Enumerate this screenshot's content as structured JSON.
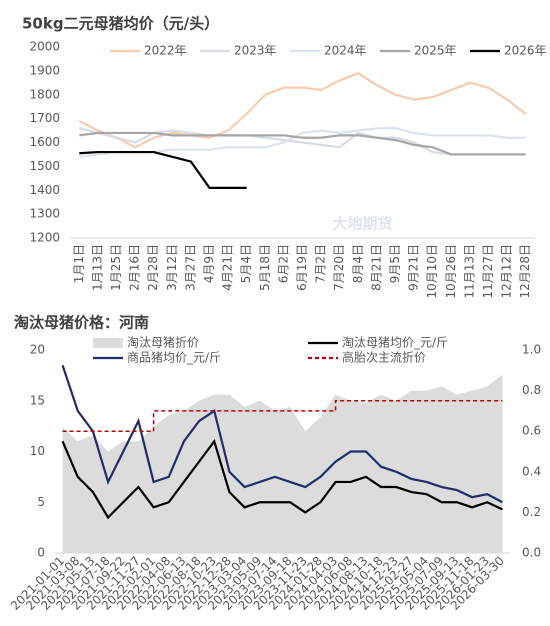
{
  "chart_data": [
    {
      "type": "line",
      "title": "50kg二元母猪均价（元/头）",
      "watermark": "大地期货",
      "categories": [
        "1月1日",
        "1月13日",
        "1月25日",
        "2月16日",
        "2月28日",
        "3月12日",
        "3月27日",
        "4月9日",
        "4月21日",
        "5月4日",
        "5月18日",
        "6月2日",
        "6月19日",
        "7月2日",
        "7月20日",
        "8月4日",
        "8月21日",
        "9月5日",
        "9月21日",
        "10月10日",
        "10月26日",
        "11月13日",
        "11月27日",
        "12月12日",
        "12月28日"
      ],
      "ylim": [
        1200,
        2000
      ],
      "yticks": [
        1200,
        1300,
        1400,
        1500,
        1600,
        1700,
        1800,
        1900,
        2000
      ],
      "grid": false,
      "series": [
        {
          "name": "2022年",
          "color": "#f8cbad",
          "values": [
            1690,
            1650,
            1620,
            1580,
            1620,
            1640,
            1630,
            1620,
            1650,
            1720,
            1800,
            1830,
            1830,
            1820,
            1860,
            1890,
            1840,
            1800,
            1780,
            1790,
            1820,
            1850,
            1830,
            1780,
            1720
          ]
        },
        {
          "name": "2023年",
          "color": "#d6dce5",
          "values": [
            1660,
            1640,
            1620,
            1600,
            1640,
            1650,
            1640,
            1630,
            1630,
            1630,
            1620,
            1610,
            1600,
            1590,
            1580,
            1640,
            1620,
            1620,
            1600,
            1560,
            1550,
            1550,
            1550,
            1550,
            1550
          ]
        },
        {
          "name": "2024年",
          "color": "#dae3f3",
          "values": [
            1540,
            1550,
            1560,
            1560,
            1560,
            1570,
            1570,
            1570,
            1580,
            1580,
            1580,
            1600,
            1640,
            1650,
            1640,
            1650,
            1660,
            1660,
            1640,
            1630,
            1630,
            1630,
            1630,
            1620,
            1620
          ]
        },
        {
          "name": "2025年",
          "color": "#a6a6a6",
          "values": [
            1630,
            1640,
            1640,
            1640,
            1640,
            1630,
            1630,
            1630,
            1630,
            1630,
            1630,
            1630,
            1620,
            1620,
            1630,
            1630,
            1620,
            1610,
            1590,
            1580,
            1550,
            1550,
            1550,
            1550,
            1550
          ]
        },
        {
          "name": "2026年",
          "color": "#000000",
          "values": [
            1555,
            1560,
            1560,
            1560,
            1560,
            1540,
            1520,
            1410,
            1410,
            1410,
            null,
            null,
            null,
            null,
            null,
            null,
            null,
            null,
            null,
            null,
            null,
            null,
            null,
            null,
            null
          ]
        }
      ]
    },
    {
      "type": "line",
      "title": "淘汰母猪价格：河南",
      "watermark": "大地期货",
      "categories": [
        "2021-01-01",
        "2021-03-08",
        "2021-05-13",
        "2021-07-18",
        "2021-09-22",
        "2021-11-27",
        "2022-02-01",
        "2022-04-08",
        "2022-06-13",
        "2022-08-18",
        "2022-10-23",
        "2022-12-28",
        "2023-03-04",
        "2023-05-09",
        "2023-07-14",
        "2023-09-18",
        "2023-11-23",
        "2024-01-28",
        "2024-04-03",
        "2024-06-08",
        "2024-08-13",
        "2024-10-18",
        "2024-12-23",
        "2025-02-27",
        "2025-05-04",
        "2025-07-09",
        "2025-09-13",
        "2025-11-18",
        "2026-01-23",
        "2026-03-30"
      ],
      "ylim": [
        0,
        20
      ],
      "yticks": [
        0,
        5,
        10,
        15,
        20
      ],
      "y2lim": [
        0,
        1
      ],
      "y2ticks": [
        {
          "value": 0,
          "label": "0.0"
        },
        0.2,
        0.4,
        0.6,
        0.8,
        {
          "value": 1,
          "label": "1.0"
        }
      ],
      "series": [
        {
          "name": "淘汰母猪折价",
          "color": "#dcdcdc",
          "axis": "y2",
          "area": true,
          "values": [
            0.62,
            0.55,
            0.58,
            0.5,
            0.55,
            0.55,
            0.62,
            0.68,
            0.7,
            0.75,
            0.78,
            0.78,
            0.72,
            0.75,
            0.7,
            0.72,
            0.6,
            0.67,
            0.78,
            0.75,
            0.74,
            0.78,
            0.75,
            0.8,
            0.8,
            0.82,
            0.78,
            0.8,
            0.82,
            0.88
          ]
        },
        {
          "name": "淘汰母猪均价_元/斤",
          "color": "#000000",
          "values": [
            11,
            7.5,
            6,
            3.5,
            5,
            6.5,
            4.5,
            5,
            7,
            9,
            11,
            6,
            4.5,
            5,
            5,
            5,
            4,
            5,
            7,
            7,
            7.5,
            6.5,
            6.5,
            6,
            5.8,
            5,
            5,
            4.5,
            5,
            4.3
          ]
        },
        {
          "name": "商品猪均价_元/斤",
          "color": "#1f2d6b",
          "values": [
            18.5,
            14,
            12,
            7,
            10,
            13,
            7,
            7.5,
            11,
            13,
            14,
            8,
            6.5,
            7,
            7.5,
            7,
            6.5,
            7.5,
            9,
            10,
            10,
            8.5,
            8,
            7.3,
            7,
            6.5,
            6.2,
            5.5,
            5.8,
            5
          ]
        },
        {
          "name": "高胎次主流折价",
          "color": "#c00000",
          "axis": "y2",
          "dashed": true,
          "step": true,
          "values": [
            0.6,
            0.6,
            0.6,
            0.6,
            0.6,
            0.6,
            0.7,
            0.7,
            0.7,
            0.7,
            0.7,
            0.7,
            0.7,
            0.7,
            0.7,
            0.7,
            0.7,
            0.7,
            0.75,
            0.75,
            0.75,
            0.75,
            0.75,
            0.75,
            0.75,
            0.75,
            0.75,
            0.75,
            0.75,
            0.75
          ]
        }
      ]
    }
  ]
}
